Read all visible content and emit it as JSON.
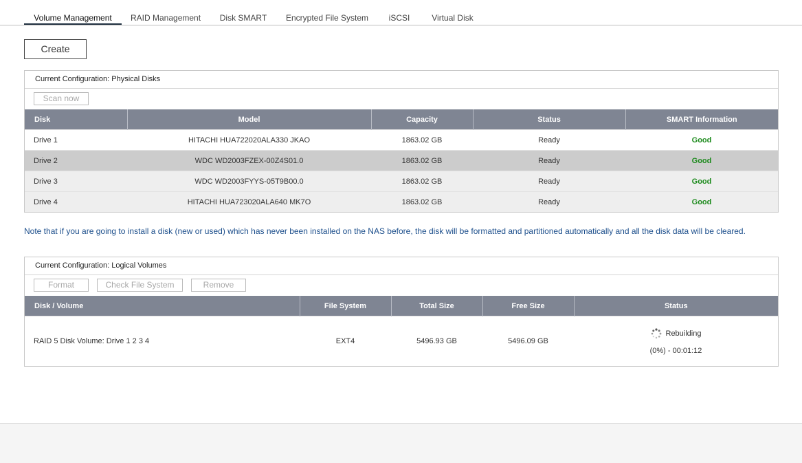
{
  "tabs": [
    {
      "label": "Volume Management",
      "active": true
    },
    {
      "label": "RAID Management",
      "active": false
    },
    {
      "label": "Disk SMART",
      "active": false
    },
    {
      "label": "Encrypted File System",
      "active": false
    },
    {
      "label": "iSCSI",
      "active": false
    },
    {
      "label": "Virtual Disk",
      "active": false
    }
  ],
  "create_label": "Create",
  "physical": {
    "title": "Current Configuration: Physical Disks",
    "scan_label": "Scan now",
    "columns": [
      "Disk",
      "Model",
      "Capacity",
      "Status",
      "SMART Information"
    ],
    "rows": [
      {
        "disk": "Drive 1",
        "model": "HITACHI HUA722020ALA330 JKAO",
        "capacity": "1863.02 GB",
        "status": "Ready",
        "smart": "Good"
      },
      {
        "disk": "Drive 2",
        "model": "WDC WD2003FZEX-00Z4S01.0",
        "capacity": "1863.02 GB",
        "status": "Ready",
        "smart": "Good"
      },
      {
        "disk": "Drive 3",
        "model": "WDC WD2003FYYS-05T9B00.0",
        "capacity": "1863.02 GB",
        "status": "Ready",
        "smart": "Good"
      },
      {
        "disk": "Drive 4",
        "model": "HITACHI HUA723020ALA640 MK7O",
        "capacity": "1863.02 GB",
        "status": "Ready",
        "smart": "Good"
      }
    ]
  },
  "note": "Note that if you are going to install a disk (new or used) which has never been installed on the NAS before, the disk will be formatted and partitioned automatically and all the disk data will be cleared.",
  "logical": {
    "title": "Current Configuration: Logical Volumes",
    "format_label": "Format",
    "check_label": "Check File System",
    "remove_label": "Remove",
    "columns": [
      "Disk / Volume",
      "File System",
      "Total Size",
      "Free Size",
      "Status"
    ],
    "rows": [
      {
        "volume": "RAID 5 Disk Volume: Drive 1 2 3 4",
        "fs": "EXT4",
        "total": "5496.93 GB",
        "free": "5496.09 GB",
        "status": "Rebuilding",
        "progress": "(0%) - 00:01:12"
      }
    ]
  },
  "colors": {
    "header_bg": "#7f8593",
    "good": "#1c8a1c",
    "note": "#1d4f8c"
  }
}
